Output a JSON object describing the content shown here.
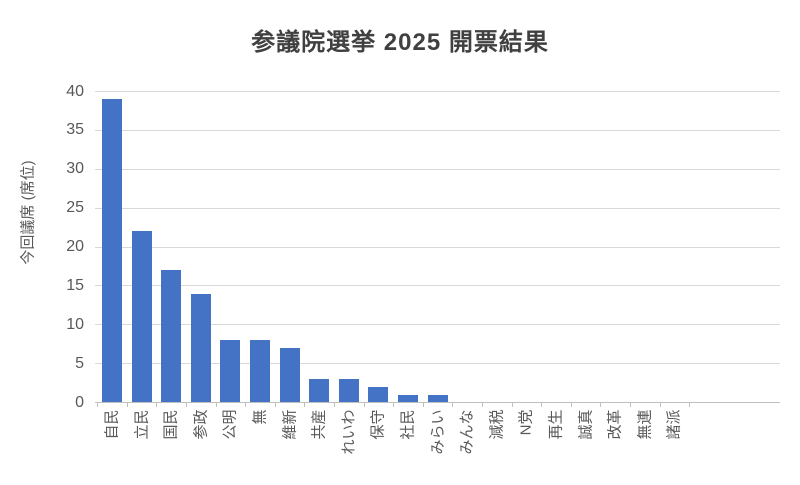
{
  "title": "参議院選挙 2025 開票結果",
  "chart_data": {
    "type": "bar",
    "title": "参議院選挙 2025 開票結果",
    "categories": [
      "自民",
      "立民",
      "国民",
      "参政",
      "公明",
      "無",
      "維新",
      "共産",
      "れいわ",
      "保守",
      "社民",
      "みらい",
      "みんな",
      "減税",
      "N党",
      "再生",
      "誠真",
      "改革",
      "無連",
      "諸派"
    ],
    "values": [
      39,
      22,
      17,
      14,
      8,
      8,
      7,
      3,
      3,
      2,
      1,
      1,
      0,
      0,
      0,
      0,
      0,
      0,
      0,
      0
    ],
    "xlabel": "",
    "ylabel": "今回議席 (席位)",
    "ylim": [
      0,
      40
    ],
    "yticks": [
      0,
      5,
      10,
      15,
      20,
      25,
      30,
      35,
      40
    ],
    "grid": true,
    "legend": false,
    "x_label_rotation": -90,
    "colors": {
      "bar": "#4472C4",
      "gridline": "#D9D9D9",
      "axis_line": "#BFBFBF",
      "axis_text": "#595959",
      "title_text": "#404040",
      "background": "#FFFFFF"
    }
  }
}
